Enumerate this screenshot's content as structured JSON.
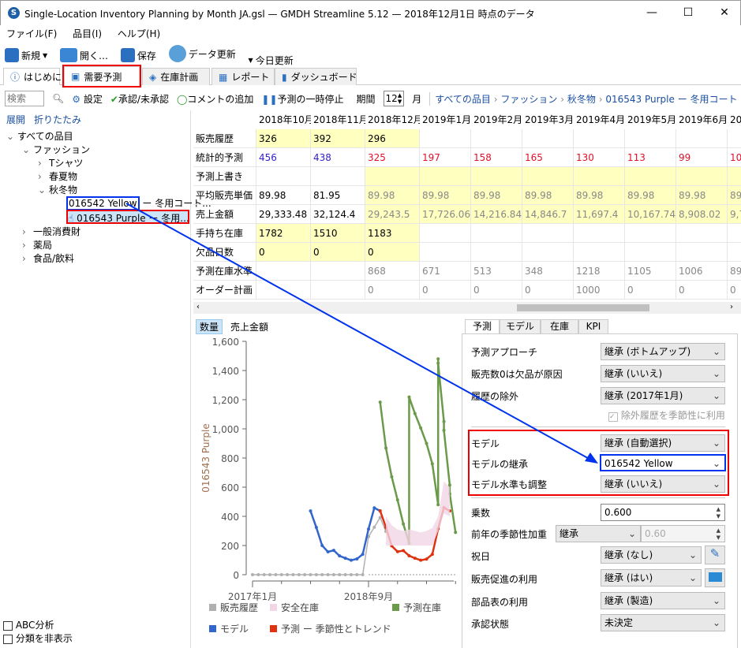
{
  "window": {
    "title": "Single-Location Inventory Planning by Month JA.gsl — GMDH Streamline 5.12 — 2018年12月1日 時点のデータ",
    "minimize": "—",
    "maximize": "☐",
    "close": "✕"
  },
  "menu": [
    "ファイル(F)",
    "品目(I)",
    "ヘルプ(H)"
  ],
  "toolbar": {
    "new": "新規",
    "open": "開く…",
    "save": "保存",
    "refresh": "データ更新",
    "today": "今日更新"
  },
  "tabs": [
    {
      "label": "はじめに",
      "icon": "info-icon"
    },
    {
      "label": "需要予測",
      "icon": "chart-icon"
    },
    {
      "label": "在庫計画",
      "icon": "tag-icon"
    },
    {
      "label": "レポート",
      "icon": "table-icon"
    },
    {
      "label": "ダッシュボード",
      "icon": "bar-chart-icon"
    }
  ],
  "subtoolbar": {
    "search_placeholder": "検索",
    "settings": "設定",
    "approve": "承認/未承認",
    "comment": "コメントの追加",
    "pause": "予測の一時停止",
    "period_label": "期間",
    "period_value": "12",
    "period_unit": "月",
    "breadcrumb": [
      "すべての品目",
      "ファッション",
      "秋冬物",
      "016543 Purple ー 冬用コート #2"
    ]
  },
  "tree": {
    "expand": "展開",
    "collapse": "折りたたみ",
    "items": [
      "すべての品目",
      "ファッション",
      "Tシャツ",
      "春夏物",
      "秋冬物",
      "016542 Yellow",
      "ー 冬用コート...",
      "016543 Purple ー 冬用...",
      "一般消費財",
      "薬局",
      "食品/飲料"
    ],
    "abc": "ABC分析",
    "hide_class": "分類を非表示"
  },
  "grid": {
    "columns": [
      "2018年10月",
      "2018年11月",
      "2018年12月",
      "2019年1月",
      "2019年2月",
      "2019年3月",
      "2019年4月",
      "2019年5月",
      "2019年6月",
      "20"
    ],
    "rows": [
      {
        "label": "販売履歴",
        "values": [
          "326",
          "392",
          "296",
          "",
          "",
          "",
          "",
          "",
          "",
          ""
        ]
      },
      {
        "label": "統計的予測",
        "values": [
          "456",
          "438",
          "325",
          "197",
          "158",
          "165",
          "130",
          "113",
          "99",
          "10"
        ]
      },
      {
        "label": "予測上書き",
        "values": [
          "",
          "",
          "",
          "",
          "",
          "",
          "",
          "",
          "",
          ""
        ]
      },
      {
        "label": "平均販売単価",
        "values": [
          "89.98",
          "81.95",
          "89.98",
          "89.98",
          "89.98",
          "89.98",
          "89.98",
          "89.98",
          "89.98",
          "89"
        ]
      },
      {
        "label": "売上金額",
        "values": [
          "29,333.48",
          "32,124.4",
          "29,243.5",
          "17,726.06",
          "14,216.84",
          "14,846.7",
          "11,697.4",
          "10,167.74",
          "8,908.02",
          "9,7"
        ]
      },
      {
        "label": "手持ち在庫",
        "values": [
          "1782",
          "1510",
          "1183",
          "",
          "",
          "",
          "",
          "",
          "",
          ""
        ]
      },
      {
        "label": "欠品日数",
        "values": [
          "0",
          "0",
          "0",
          "",
          "",
          "",
          "",
          "",
          "",
          ""
        ]
      },
      {
        "label": "予測在庫水準",
        "values": [
          "",
          "",
          "868",
          "671",
          "513",
          "348",
          "1218",
          "1105",
          "1006",
          "89"
        ]
      },
      {
        "label": "オーダー計画",
        "values": [
          "",
          "",
          "0",
          "0",
          "0",
          "0",
          "1000",
          "0",
          "0",
          "0"
        ]
      }
    ]
  },
  "chart_tabs": {
    "qty": "数量",
    "sales": "売上金額"
  },
  "chart_data": {
    "type": "line",
    "ylabel": "016543 Purple",
    "ylim": [
      0,
      1600
    ],
    "yticks": [
      "0",
      "200",
      "400",
      "600",
      "800",
      "1,000",
      "1,200",
      "1,400",
      "1,600"
    ],
    "xticks": [
      "2017年1月",
      "2018年9月"
    ],
    "xrange": [
      "2017-01",
      "2019-12"
    ],
    "grid": false,
    "legend": [
      "販売履歴",
      "安全在庫",
      "予測在庫",
      "モデル",
      "予測 ー 季節性とトレンド"
    ],
    "colors": {
      "history": "#b0b0b0",
      "safety": "#f3d6e6",
      "inventory": "#6a9a4a",
      "model": "#3366cc",
      "forecast": "#dd3311"
    },
    "series": [
      {
        "name": "販売履歴",
        "key": "history",
        "x": [
          "2017-01",
          "2017-02",
          "2017-03",
          "2017-04",
          "2017-05",
          "2017-06",
          "2017-07",
          "2017-08",
          "2017-09",
          "2017-10",
          "2017-11",
          "2017-12",
          "2018-01",
          "2018-02",
          "2018-03",
          "2018-04",
          "2018-05",
          "2018-06",
          "2018-07",
          "2018-08",
          "2018-09",
          "2018-10",
          "2018-11",
          "2018-12"
        ],
        "y": [
          0,
          0,
          0,
          0,
          0,
          0,
          0,
          0,
          0,
          0,
          0,
          0,
          0,
          0,
          0,
          0,
          0,
          0,
          0,
          0,
          261,
          326,
          392,
          296
        ]
      },
      {
        "name": "モデル",
        "key": "model",
        "x": [
          "2017-11",
          "2017-12",
          "2018-01",
          "2018-02",
          "2018-03",
          "2018-04",
          "2018-05",
          "2018-06",
          "2018-07",
          "2018-08",
          "2018-09",
          "2018-10",
          "2018-11"
        ],
        "y": [
          437,
          324,
          200,
          157,
          167,
          129,
          113,
          99,
          108,
          140,
          313,
          458,
          437
        ]
      },
      {
        "name": "予測 ー 季節性とトレンド",
        "key": "forecast",
        "x": [
          "2018-11",
          "2018-12",
          "2019-01",
          "2019-02",
          "2019-03",
          "2019-04",
          "2019-05",
          "2019-06",
          "2019-07",
          "2019-08",
          "2019-09",
          "2019-10",
          "2019-11"
        ],
        "y": [
          438,
          325,
          197,
          158,
          165,
          130,
          113,
          99,
          107,
          140,
          315,
          460,
          437
        ]
      },
      {
        "name": "予測在庫",
        "key": "inventory",
        "x": [
          "2018-11",
          "2018-12",
          "2019-01",
          "2019-02",
          "2019-03",
          "2019-04",
          "2019-04",
          "2019-05",
          "2019-06",
          "2019-07",
          "2019-08",
          "2019-09",
          "2019-09",
          "2019-09",
          "2019-10",
          "2019-10",
          "2019-11",
          "2019-11",
          "2019-12"
        ],
        "y": [
          1183,
          868,
          671,
          513,
          348,
          215,
          1218,
          1105,
          1006,
          900,
          760,
          480,
          1480,
          1450,
          1050,
          990,
          615,
          555,
          290
        ]
      },
      {
        "name": "安全在庫",
        "key": "safety",
        "type": "area",
        "x": [
          "2018-12",
          "2019-01",
          "2019-02",
          "2019-03",
          "2019-04",
          "2019-05",
          "2019-06",
          "2019-07",
          "2019-08",
          "2019-09",
          "2019-10",
          "2019-11"
        ],
        "low": [
          200,
          200,
          200,
          200,
          200,
          200,
          200,
          200,
          200,
          300,
          420,
          400
        ],
        "high": [
          400,
          340,
          310,
          300,
          310,
          300,
          290,
          300,
          320,
          400,
          640,
          600
        ]
      }
    ]
  },
  "panel": {
    "tabs": [
      "予測",
      "モデル",
      "在庫",
      "KPI"
    ],
    "approach": {
      "label": "予測アプローチ",
      "value": "継承 (ボトムアップ)"
    },
    "zero_sales": {
      "label": "販売数0は欠品が原因",
      "value": "継承 (いいえ)"
    },
    "exclude": {
      "label": "履歴の除外",
      "value": "継承 (2017年1月)"
    },
    "use_excluded": "除外履歴を季節性に利用",
    "model": {
      "label": "モデル",
      "value": "継承 (自動選択)"
    },
    "inherit": {
      "label": "モデルの継承",
      "value": "016542 Yellow"
    },
    "adjust": {
      "label": "モデル水準も調整",
      "value": "継承 (いいえ)"
    },
    "multiplier": {
      "label": "乗数",
      "value": "0.600"
    },
    "seasonal": {
      "label": "前年の季節性加重",
      "value": "継承",
      "num": "0.60"
    },
    "holiday": {
      "label": "祝日",
      "value": "継承 (なし)"
    },
    "promo": {
      "label": "販売促進の利用",
      "value": "継承 (はい)"
    },
    "bom": {
      "label": "部品表の利用",
      "value": "継承 (製造)"
    },
    "approval": {
      "label": "承認状態",
      "value": "未決定"
    }
  }
}
